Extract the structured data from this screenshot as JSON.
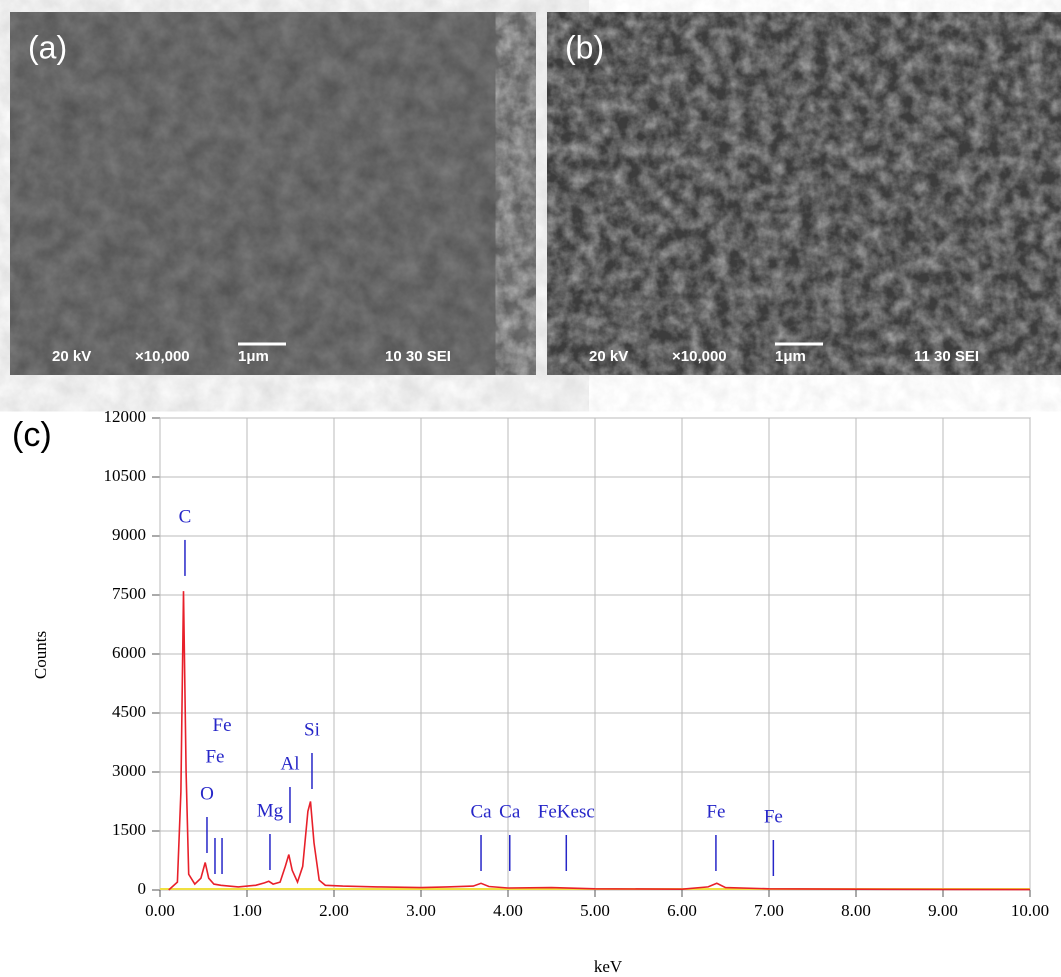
{
  "panels": [
    {
      "label": "(a)",
      "voltage": "20 kV",
      "magnification": "×10,000",
      "scale": "1μm",
      "info": "10 30 SEI"
    },
    {
      "label": "(b)",
      "voltage": "20 kV",
      "magnification": "×10,000",
      "scale": "1μm",
      "info": "11 30 SEI"
    }
  ],
  "chart_label": "(c)",
  "chart_data": {
    "type": "line",
    "xlabel": "keV",
    "ylabel": "Counts",
    "xlim": [
      0,
      10
    ],
    "ylim": [
      0,
      12000
    ],
    "xticks": [
      {
        "value": 0,
        "label": "0.00"
      },
      {
        "value": 1,
        "label": "1.00"
      },
      {
        "value": 2,
        "label": "2.00"
      },
      {
        "value": 3,
        "label": "3.00"
      },
      {
        "value": 4,
        "label": "4.00"
      },
      {
        "value": 5,
        "label": "5.00"
      },
      {
        "value": 6,
        "label": "6.00"
      },
      {
        "value": 7,
        "label": "7.00"
      },
      {
        "value": 8,
        "label": "8.00"
      },
      {
        "value": 9,
        "label": "9.00"
      },
      {
        "value": 10,
        "label": "10.00"
      }
    ],
    "yticks": [
      0,
      1500,
      3000,
      4500,
      6000,
      7500,
      9000,
      10500,
      12000
    ],
    "grid": true,
    "x": [
      0.1,
      0.2,
      0.24,
      0.27,
      0.3,
      0.33,
      0.4,
      0.47,
      0.52,
      0.56,
      0.62,
      0.7,
      0.9,
      1.1,
      1.2,
      1.25,
      1.3,
      1.38,
      1.44,
      1.48,
      1.52,
      1.58,
      1.64,
      1.7,
      1.73,
      1.77,
      1.83,
      1.9,
      2.1,
      2.5,
      3.0,
      3.3,
      3.6,
      3.69,
      3.78,
      4.0,
      4.5,
      5.0,
      6.0,
      6.3,
      6.4,
      6.5,
      7.0,
      8.0,
      9.0,
      10.0
    ],
    "series": [
      {
        "color": "#e8202a",
        "values": [
          0,
          200,
          2500,
          7600,
          3000,
          400,
          150,
          300,
          700,
          300,
          150,
          120,
          80,
          120,
          180,
          220,
          150,
          200,
          600,
          900,
          500,
          200,
          600,
          2000,
          2250,
          1200,
          250,
          120,
          100,
          80,
          60,
          80,
          100,
          170,
          90,
          50,
          60,
          30,
          20,
          80,
          170,
          60,
          30,
          20,
          15,
          10
        ]
      }
    ],
    "annotations": [
      {
        "text": "C",
        "x": 0.287,
        "y": 8900
      },
      {
        "text": "O",
        "x": 0.54,
        "y": 1856
      },
      {
        "text": "Fe",
        "x": 0.632,
        "y": 1322,
        "label_y": 3350
      },
      {
        "text": "Fe",
        "x": 0.713,
        "y": 1322,
        "label_y": 4150
      },
      {
        "text": "Mg",
        "x": 1.264,
        "y": 1424
      },
      {
        "text": "Al",
        "x": 1.494,
        "y": 2619
      },
      {
        "text": "Si",
        "x": 1.747,
        "y": 3483
      },
      {
        "text": "Ca",
        "x": 3.69,
        "y": 1398
      },
      {
        "text": "Ca",
        "x": 4.02,
        "y": 1398
      },
      {
        "text": "FeKesc",
        "x": 4.67,
        "y": 1398
      },
      {
        "text": "Fe",
        "x": 6.39,
        "y": 1398
      },
      {
        "text": "Fe",
        "x": 7.05,
        "y": 1271
      }
    ]
  }
}
